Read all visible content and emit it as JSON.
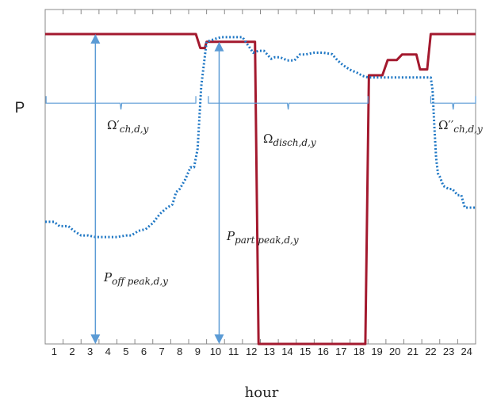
{
  "chart_data": {
    "type": "line",
    "xlabel": "hour",
    "ylabel": "P",
    "x_ticks": [
      "1",
      "2",
      "3",
      "4",
      "5",
      "6",
      "7",
      "8",
      "9",
      "10",
      "11",
      "12",
      "13",
      "14",
      "15",
      "16",
      "17",
      "18",
      "19",
      "20",
      "21",
      "22",
      "23",
      "24"
    ],
    "xlim": [
      0,
      24
    ],
    "ylim": [
      0,
      1
    ],
    "grid": false,
    "series": [
      {
        "style": "solid",
        "color": "#A3192E",
        "x": [
          0,
          8.4,
          8.65,
          8.9,
          9.0,
          11.7,
          11.9,
          12.1,
          17.85,
          18.05,
          18.15,
          18.8,
          19.1,
          19.6,
          19.9,
          20.7,
          20.9,
          21.3,
          21.5,
          24
        ],
        "y": [
          1.0,
          1.0,
          0.955,
          0.955,
          0.975,
          0.975,
          0.0,
          0.0,
          0.0,
          0.867,
          0.867,
          0.867,
          0.916,
          0.916,
          0.934,
          0.934,
          0.886,
          0.886,
          1.0,
          1.0
        ]
      },
      {
        "style": "dotted",
        "color": "#1F77C4",
        "x": [
          0,
          0.5,
          0.8,
          1.3,
          1.6,
          2.0,
          2.4,
          2.8,
          3.4,
          4.0,
          4.5,
          4.8,
          5.2,
          5.6,
          5.8,
          6.0,
          6.4,
          6.6,
          6.8,
          7.1,
          7.3,
          7.5,
          7.8,
          8.1,
          8.3,
          8.5,
          8.7,
          9.0,
          9.4,
          9.8,
          10.6,
          11.0,
          11.6,
          11.9,
          12.2,
          12.6,
          12.8,
          13.1,
          13.5,
          13.9,
          14.2,
          14.5,
          15.0,
          15.5,
          16.0,
          16.3,
          16.6,
          17.0,
          17.4,
          17.7,
          18.0,
          18.3,
          21.5,
          21.6,
          21.7,
          21.8,
          21.9,
          22.0,
          22.2,
          22.5,
          22.7,
          23.0,
          23.2,
          23.4,
          23.7,
          24
        ],
        "y": [
          0.394,
          0.394,
          0.38,
          0.38,
          0.365,
          0.35,
          0.35,
          0.345,
          0.345,
          0.345,
          0.35,
          0.35,
          0.365,
          0.37,
          0.38,
          0.39,
          0.42,
          0.43,
          0.44,
          0.45,
          0.49,
          0.5,
          0.53,
          0.57,
          0.57,
          0.63,
          0.83,
          0.975,
          0.983,
          0.99,
          0.99,
          0.99,
          0.94,
          0.946,
          0.946,
          0.92,
          0.925,
          0.925,
          0.915,
          0.915,
          0.934,
          0.934,
          0.94,
          0.94,
          0.935,
          0.915,
          0.9,
          0.885,
          0.875,
          0.865,
          0.86,
          0.86,
          0.86,
          0.82,
          0.7,
          0.6,
          0.55,
          0.54,
          0.51,
          0.5,
          0.5,
          0.48,
          0.48,
          0.44,
          0.44,
          0.44
        ]
      }
    ],
    "annotations": [
      {
        "type": "brace",
        "x0": 0.05,
        "x1": 8.4,
        "y": 0.8
      },
      {
        "type": "brace",
        "x0": 9.1,
        "x1": 18.0,
        "y": 0.8
      },
      {
        "type": "brace",
        "x0": 21.5,
        "x1": 24.0,
        "y": 0.8
      },
      {
        "type": "arrow",
        "x": 2.8,
        "y0": 0.0,
        "y1": 1.0
      },
      {
        "type": "arrow",
        "x": 9.7,
        "y0": 0.0,
        "y1": 0.975
      }
    ],
    "labels": {
      "omega_ch1": {
        "base": "Ω′",
        "sub": "ch,d,y"
      },
      "omega_disch": {
        "base": "Ω",
        "sub": "disch,d,y"
      },
      "omega_ch2": {
        "base": "Ω′′",
        "sub": "ch,d,y"
      },
      "p_part_peak": {
        "base": "P",
        "sub": "part peak,d,y"
      },
      "p_off_peak": {
        "base": "P",
        "sub": "off peak,d,y"
      }
    },
    "colors": {
      "solid_series": "#A3192E",
      "dotted_series": "#1F77C4",
      "annotation": "#5B9BD5",
      "axis": "#888888"
    }
  }
}
